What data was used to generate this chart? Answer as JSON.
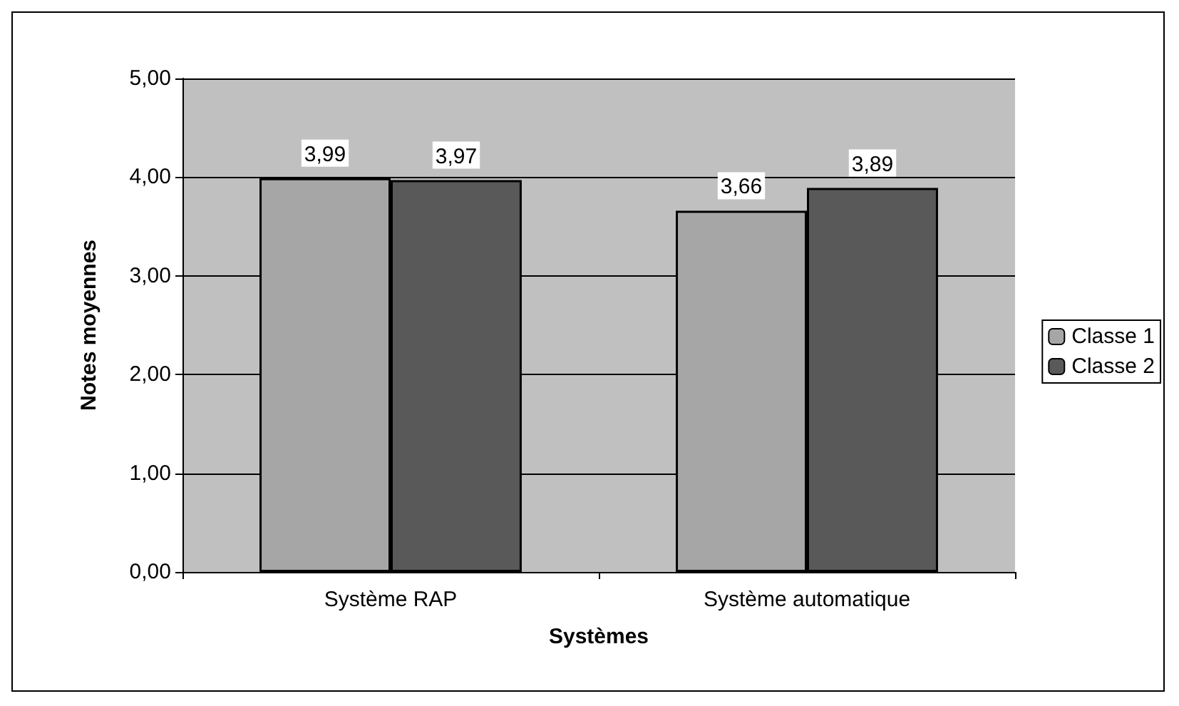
{
  "chart_data": {
    "type": "bar",
    "xlabel": "Systèmes",
    "ylabel": "Notes moyennes",
    "categories": [
      "Système RAP",
      "Système automatique"
    ],
    "series": [
      {
        "name": "Classe 1",
        "color": "#a6a6a6",
        "values": [
          3.99,
          3.66
        ],
        "value_labels": [
          "3,99",
          "3,66"
        ]
      },
      {
        "name": "Classe 2",
        "color": "#595959",
        "values": [
          3.97,
          3.89
        ],
        "value_labels": [
          "3,97",
          "3,89"
        ]
      }
    ],
    "ylim": [
      0,
      5
    ],
    "yticks": [
      {
        "value": 0,
        "label": "0,00"
      },
      {
        "value": 1,
        "label": "1,00"
      },
      {
        "value": 2,
        "label": "2,00"
      },
      {
        "value": 3,
        "label": "3,00"
      },
      {
        "value": 4,
        "label": "4,00"
      },
      {
        "value": 5,
        "label": "5,00"
      }
    ],
    "grid": "y",
    "legend": "right"
  }
}
